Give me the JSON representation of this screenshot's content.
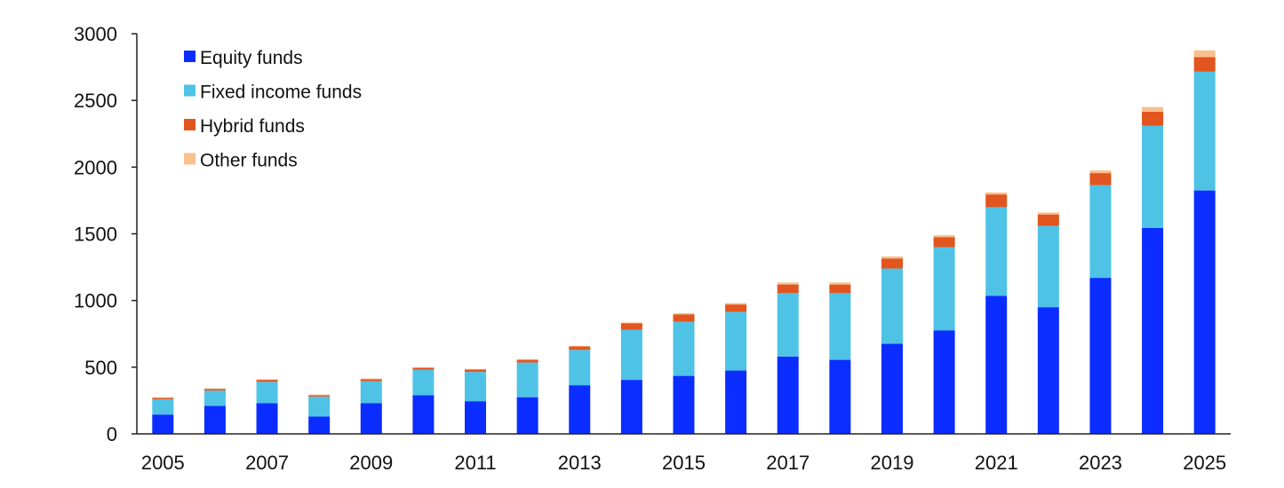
{
  "chart_data": {
    "type": "bar",
    "stacked": true,
    "title": "",
    "xlabel": "",
    "ylabel": "",
    "ylim": [
      0,
      3000
    ],
    "y_ticks": [
      0,
      500,
      1000,
      1500,
      2000,
      2500,
      3000
    ],
    "grid": false,
    "legend_position": "top-left",
    "categories": [
      "2005",
      "2006",
      "2007",
      "2008",
      "2009",
      "2010",
      "2011",
      "2012",
      "2013",
      "2014",
      "2015",
      "2016",
      "2017",
      "2018",
      "2019",
      "2020",
      "2021",
      "2022",
      "2023",
      "2024",
      "2025"
    ],
    "x_tick_labels": [
      "2005",
      "2007",
      "2009",
      "2011",
      "2013",
      "2015",
      "2017",
      "2019",
      "2021",
      "2023",
      "2025"
    ],
    "series": [
      {
        "name": "Equity funds",
        "color": "#0b2dff",
        "values": [
          145,
          210,
          230,
          130,
          230,
          290,
          245,
          275,
          365,
          405,
          435,
          475,
          580,
          555,
          675,
          775,
          1035,
          950,
          1170,
          1545,
          1825
        ]
      },
      {
        "name": "Fixed income funds",
        "color": "#4fc3e6",
        "values": [
          115,
          115,
          160,
          150,
          165,
          190,
          220,
          260,
          265,
          375,
          405,
          440,
          475,
          500,
          565,
          625,
          665,
          610,
          695,
          765,
          890
        ]
      },
      {
        "name": "Hybrid funds",
        "color": "#e2551e",
        "values": [
          10,
          12,
          15,
          10,
          15,
          15,
          17,
          20,
          25,
          50,
          55,
          55,
          65,
          65,
          75,
          75,
          95,
          85,
          90,
          105,
          110
        ]
      },
      {
        "name": "Other funds",
        "color": "#f8c08c",
        "values": [
          5,
          5,
          5,
          5,
          5,
          5,
          5,
          5,
          5,
          5,
          10,
          10,
          15,
          15,
          15,
          15,
          15,
          15,
          20,
          35,
          50
        ]
      }
    ]
  }
}
